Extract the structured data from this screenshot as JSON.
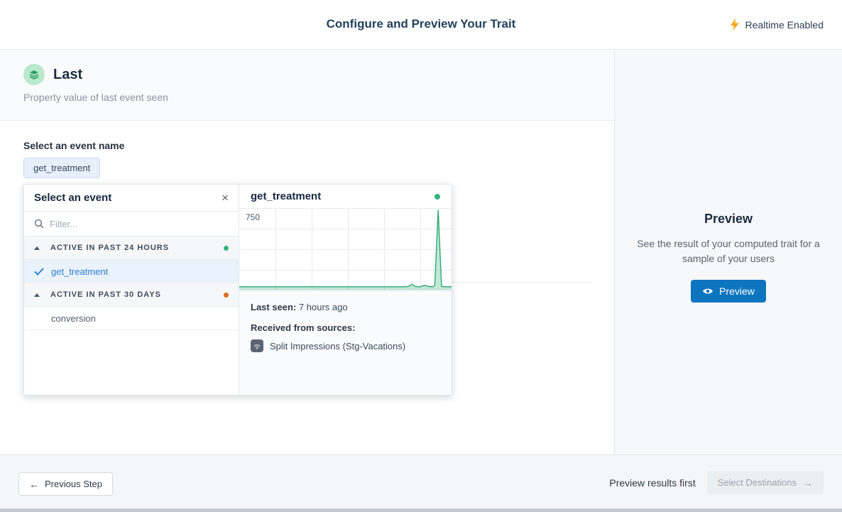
{
  "header": {
    "title": "Configure and Preview Your Trait",
    "realtime_label": "Realtime Enabled"
  },
  "trait": {
    "name": "Last",
    "description": "Property value of last event seen"
  },
  "event_select": {
    "label": "Select an event name",
    "selected_chip": "get_treatment"
  },
  "popover": {
    "title": "Select an event",
    "close_icon": "×",
    "filter_placeholder": "Filter...",
    "groups": [
      {
        "label": "ACTIVE IN PAST 24 HOURS",
        "status_color": "#36b37e",
        "items": [
          {
            "label": "get_treatment",
            "selected": true
          }
        ]
      },
      {
        "label": "ACTIVE IN PAST 30 DAYS",
        "status_color": "#e06a24",
        "items": [
          {
            "label": "conversion",
            "selected": false
          }
        ]
      }
    ]
  },
  "detail": {
    "title": "get_treatment",
    "status_color": "#36b37e",
    "last_seen_label": "Last seen:",
    "last_seen_value": "7 hours ago",
    "sources_label": "Received from sources:",
    "source_name": "Split Impressions (Stg-Vacations)"
  },
  "chart_data": {
    "type": "area",
    "title": "get_treatment event volume",
    "ylabel_top": "750",
    "ymax": 750,
    "grid": {
      "v_spacing": 51,
      "h_spacing": 29
    },
    "line_color": "#2fa873",
    "fill_color": "rgba(54,179,126,0.30)",
    "points": [
      [
        0.0,
        8
      ],
      [
        0.78,
        8
      ],
      [
        0.795,
        10
      ],
      [
        0.813,
        32
      ],
      [
        0.83,
        10
      ],
      [
        0.853,
        8
      ],
      [
        0.873,
        22
      ],
      [
        0.893,
        10
      ],
      [
        0.91,
        8
      ],
      [
        0.921,
        20
      ],
      [
        0.937,
        745
      ],
      [
        0.953,
        12
      ],
      [
        0.97,
        8
      ],
      [
        1.0,
        8
      ]
    ]
  },
  "preview_panel": {
    "title": "Preview",
    "description": "See the result of your computed trait for a sample of your users",
    "button_label": "Preview"
  },
  "footer": {
    "previous_label": "Previous Step",
    "previous_arrow": "←",
    "hint": "Preview results first",
    "next_label": "Select Destinations",
    "next_arrow": "→"
  },
  "colors": {
    "accent_blue": "#0d74bf",
    "selected_blue": "#2e7cd6",
    "green": "#36b37e",
    "orange": "#e06a24",
    "bolt_gold": "#f5a81c"
  }
}
